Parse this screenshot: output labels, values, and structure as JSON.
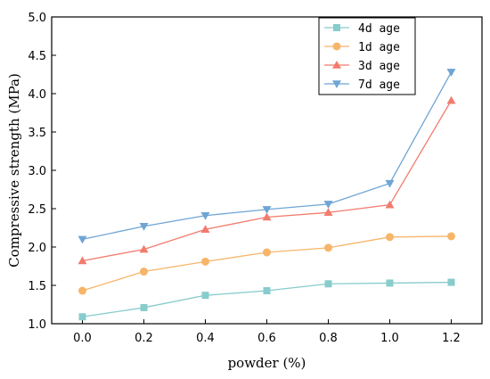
{
  "chart_data": {
    "type": "line",
    "xlabel": "powder (%)",
    "ylabel": "Compressive strength (MPa)",
    "xlim": [
      -0.1,
      1.3
    ],
    "ylim": [
      1.0,
      5.0
    ],
    "xticks": [
      "0.0",
      "0.2",
      "0.4",
      "0.6",
      "0.8",
      "1.0",
      "1.2"
    ],
    "yticks": [
      "1.0",
      "1.5",
      "2.0",
      "2.5",
      "3.0",
      "3.5",
      "4.0",
      "4.5",
      "5.0"
    ],
    "x": [
      0.0,
      0.2,
      0.4,
      0.6,
      0.8,
      1.0,
      1.2
    ],
    "legend_position": "top-right",
    "grid": false,
    "series": [
      {
        "name": "4d age",
        "color": "#88cccc",
        "marker": "square",
        "values": [
          1.09,
          1.21,
          1.37,
          1.43,
          1.52,
          1.53,
          1.54
        ]
      },
      {
        "name": "1d age",
        "color": "#f7b56a",
        "marker": "circle",
        "values": [
          1.43,
          1.68,
          1.81,
          1.93,
          1.99,
          2.13,
          2.14
        ]
      },
      {
        "name": "3d age",
        "color": "#f27b6e",
        "marker": "triangle-up",
        "values": [
          1.82,
          1.97,
          2.23,
          2.39,
          2.45,
          2.55,
          3.91
        ]
      },
      {
        "name": "7d age",
        "color": "#6fa5d4",
        "marker": "triangle-down",
        "values": [
          2.1,
          2.27,
          2.41,
          2.49,
          2.56,
          2.83,
          4.28
        ]
      }
    ]
  }
}
